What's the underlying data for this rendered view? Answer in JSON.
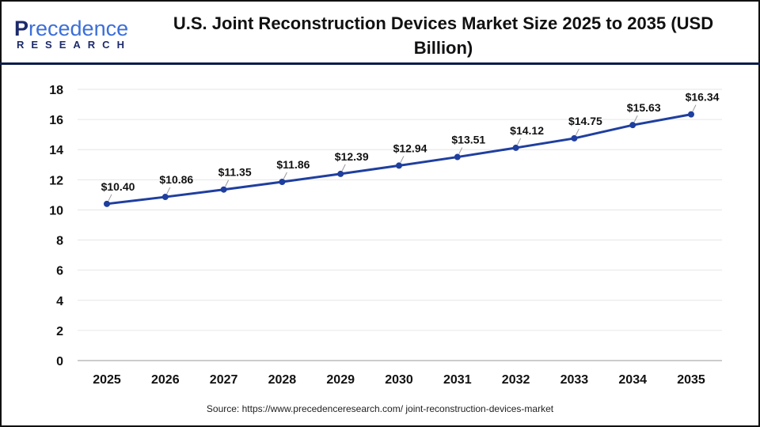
{
  "logo": {
    "line1_initial": "P",
    "line1_rest": "recedence",
    "line2": "RESEARCH"
  },
  "chart_data": {
    "type": "line",
    "title": "U.S. Joint Reconstruction Devices Market Size 2025 to 2035 (USD Billion)",
    "categories": [
      "2025",
      "2026",
      "2027",
      "2028",
      "2029",
      "2030",
      "2031",
      "2032",
      "2033",
      "2034",
      "2035"
    ],
    "values": [
      10.4,
      10.86,
      11.35,
      11.86,
      12.39,
      12.94,
      13.51,
      14.12,
      14.75,
      15.63,
      16.34
    ],
    "data_labels": [
      "$10.40",
      "$10.86",
      "$11.35",
      "$11.86",
      "$12.39",
      "$12.94",
      "$13.51",
      "$14.12",
      "$14.75",
      "$15.63",
      "$16.34"
    ],
    "ylim": [
      0,
      18
    ],
    "yticks": [
      0,
      2,
      4,
      6,
      8,
      10,
      12,
      14,
      16,
      18
    ],
    "grid": true,
    "line_color": "#1f3f9f"
  },
  "source": "Source: https://www.precedenceresearch.com/ joint-reconstruction-devices-market"
}
